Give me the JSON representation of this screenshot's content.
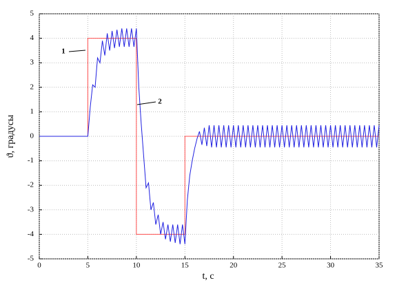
{
  "chart_data": {
    "type": "line",
    "xlabel": "t, с",
    "ylabel": "ϑ, градусы",
    "xlim": [
      0,
      35
    ],
    "xticks": [
      0,
      5,
      10,
      15,
      20,
      25,
      30,
      35
    ],
    "ylim": [
      -5,
      5
    ],
    "yticks": [
      -5,
      -4,
      -3,
      -2,
      -1,
      0,
      1,
      2,
      3,
      4,
      5
    ],
    "grid": true,
    "annotations": [
      "1",
      "2"
    ],
    "series": [
      {
        "color": "#ff5050",
        "x": [
          0,
          5,
          5,
          10,
          10,
          15,
          15,
          35
        ],
        "values": [
          0,
          0,
          4,
          4,
          -4,
          -4,
          0,
          0
        ]
      },
      {
        "color": "#2020e0",
        "x": [
          0,
          5,
          5.25,
          5.5,
          5.75,
          6,
          6.25,
          6.5,
          6.75,
          7,
          7.25,
          7.5,
          7.75,
          8,
          8.25,
          8.5,
          8.75,
          9,
          9.25,
          9.5,
          9.75,
          10,
          10.25,
          10.5,
          10.75,
          11,
          11.25,
          11.5,
          11.75,
          12,
          12.25,
          12.5,
          12.75,
          13,
          13.25,
          13.5,
          13.75,
          14,
          14.25,
          14.5,
          14.75,
          15,
          15.25,
          15.5,
          15.75,
          16,
          16.25,
          16.5,
          16.75,
          17,
          17.25,
          17.5,
          17.75,
          18,
          18.25,
          18.5,
          18.75,
          19,
          19.25,
          19.5,
          19.75,
          20,
          20.25,
          20.5,
          20.75,
          21,
          21.25,
          21.5,
          21.75,
          22,
          22.25,
          22.5,
          22.75,
          23,
          23.25,
          23.5,
          23.75,
          24,
          24.25,
          24.5,
          24.75,
          25,
          25.25,
          25.5,
          25.75,
          26,
          26.25,
          26.5,
          26.75,
          27,
          27.25,
          27.5,
          27.75,
          28,
          28.25,
          28.5,
          28.75,
          29,
          29.25,
          29.5,
          29.75,
          30,
          30.25,
          30.5,
          30.75,
          31,
          31.25,
          31.5,
          31.75,
          32,
          32.25,
          32.5,
          32.75,
          33,
          33.25,
          33.5,
          33.75,
          34,
          34.25,
          34.5,
          34.75,
          35
        ],
        "values": [
          0,
          0,
          1.2,
          2.1,
          2.0,
          3.2,
          3.0,
          3.9,
          3.3,
          4.2,
          3.5,
          4.3,
          3.6,
          4.35,
          3.65,
          4.4,
          3.65,
          4.4,
          3.65,
          4.4,
          3.65,
          4.4,
          2.0,
          0.5,
          -0.8,
          -2.1,
          -1.9,
          -3.0,
          -2.7,
          -3.6,
          -3.2,
          -4.0,
          -3.5,
          -4.2,
          -3.6,
          -4.3,
          -3.6,
          -4.35,
          -3.6,
          -4.4,
          -3.6,
          -4.4,
          -2.6,
          -1.6,
          -1.0,
          -0.5,
          -0.1,
          0.2,
          -0.35,
          0.35,
          -0.4,
          0.45,
          -0.45,
          0.45,
          -0.45,
          0.45,
          -0.45,
          0.45,
          -0.45,
          0.45,
          -0.45,
          0.45,
          -0.45,
          0.45,
          -0.45,
          0.45,
          -0.45,
          0.45,
          -0.45,
          0.45,
          -0.45,
          0.45,
          -0.45,
          0.45,
          -0.45,
          0.45,
          -0.45,
          0.45,
          -0.45,
          0.45,
          -0.45,
          0.45,
          -0.45,
          0.45,
          -0.45,
          0.45,
          -0.45,
          0.45,
          -0.45,
          0.45,
          -0.45,
          0.45,
          -0.45,
          0.45,
          -0.45,
          0.45,
          -0.45,
          0.45,
          -0.45,
          0.45,
          -0.45,
          0.45,
          -0.45,
          0.45,
          -0.45,
          0.45,
          -0.45,
          0.45,
          -0.45,
          0.45,
          -0.45,
          0.45,
          -0.45,
          0.45,
          -0.45,
          0.45,
          -0.45,
          0.45,
          -0.45,
          0.45,
          -0.45,
          0.45
        ]
      }
    ]
  }
}
